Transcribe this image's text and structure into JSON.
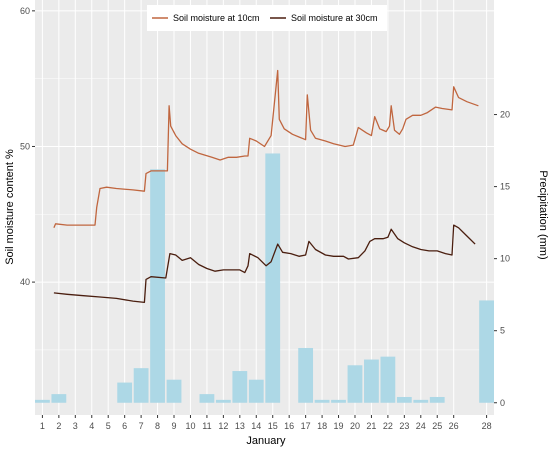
{
  "chart_data": {
    "type": "line",
    "xlabel": "January",
    "x_ticks": [
      1,
      2,
      3,
      4,
      5,
      6,
      7,
      8,
      9,
      10,
      11,
      12,
      13,
      14,
      15,
      16,
      17,
      18,
      19,
      20,
      21,
      22,
      23,
      24,
      25,
      26,
      28
    ],
    "y_left": {
      "label": "Soil moisture content %",
      "ticks": [
        40,
        50,
        60
      ],
      "range": [
        30.2,
        60.8
      ]
    },
    "y_right": {
      "label": "Precipitation (mm)",
      "ticks": [
        0,
        5,
        10,
        15,
        20
      ],
      "range": [
        -0.85,
        27.95
      ]
    },
    "legend": {
      "position": "top",
      "entries": [
        "Soil moisture at 10cm",
        "Soil moisture at 30cm"
      ]
    },
    "grid": true,
    "colors": {
      "sm10": "#c0663f",
      "sm30": "#4a1e0f",
      "precip": "#add8e6",
      "panel": "#ebebeb",
      "grid": "#ffffff"
    },
    "series": [
      {
        "name": "Soil moisture at 10cm",
        "axis": "left",
        "points": [
          [
            1.7,
            44.0
          ],
          [
            1.8,
            44.3
          ],
          [
            2.5,
            44.2
          ],
          [
            3.5,
            44.2
          ],
          [
            4.2,
            44.2
          ],
          [
            4.3,
            45.5
          ],
          [
            4.5,
            46.9
          ],
          [
            4.9,
            47.0
          ],
          [
            5.5,
            46.9
          ],
          [
            6.5,
            46.8
          ],
          [
            7.2,
            46.7
          ],
          [
            7.3,
            48.0
          ],
          [
            7.6,
            48.2
          ],
          [
            8.6,
            48.2
          ],
          [
            8.7,
            53.0
          ],
          [
            8.8,
            51.5
          ],
          [
            9.1,
            50.8
          ],
          [
            9.5,
            50.2
          ],
          [
            10.0,
            49.8
          ],
          [
            10.5,
            49.5
          ],
          [
            11.3,
            49.2
          ],
          [
            11.8,
            49.0
          ],
          [
            12.3,
            49.2
          ],
          [
            12.8,
            49.2
          ],
          [
            13.3,
            49.3
          ],
          [
            13.5,
            49.3
          ],
          [
            13.6,
            50.6
          ],
          [
            14.0,
            50.4
          ],
          [
            14.5,
            50.0
          ],
          [
            14.9,
            50.8
          ],
          [
            15.3,
            55.6
          ],
          [
            15.4,
            52.0
          ],
          [
            15.7,
            51.3
          ],
          [
            16.2,
            50.9
          ],
          [
            16.6,
            50.7
          ],
          [
            17.0,
            50.5
          ],
          [
            17.1,
            53.8
          ],
          [
            17.3,
            51.2
          ],
          [
            17.6,
            50.6
          ],
          [
            18.2,
            50.4
          ],
          [
            18.7,
            50.2
          ],
          [
            19.4,
            50.0
          ],
          [
            19.9,
            50.1
          ],
          [
            20.2,
            51.4
          ],
          [
            20.7,
            51.0
          ],
          [
            21.0,
            50.8
          ],
          [
            21.2,
            52.2
          ],
          [
            21.5,
            51.3
          ],
          [
            21.9,
            51.1
          ],
          [
            22.1,
            51.5
          ],
          [
            22.2,
            53.0
          ],
          [
            22.4,
            51.2
          ],
          [
            22.7,
            50.9
          ],
          [
            22.9,
            51.3
          ],
          [
            23.1,
            52.0
          ],
          [
            23.5,
            52.3
          ],
          [
            24.0,
            52.3
          ],
          [
            24.4,
            52.5
          ],
          [
            24.9,
            52.9
          ],
          [
            25.3,
            52.8
          ],
          [
            25.9,
            52.7
          ],
          [
            26.0,
            54.4
          ],
          [
            26.3,
            53.6
          ],
          [
            26.8,
            53.3
          ],
          [
            27.5,
            53.0
          ]
        ]
      },
      {
        "name": "Soil moisture at 30cm",
        "axis": "left",
        "points": [
          [
            1.7,
            39.2
          ],
          [
            2.5,
            39.1
          ],
          [
            3.5,
            39.0
          ],
          [
            4.5,
            38.9
          ],
          [
            5.5,
            38.8
          ],
          [
            6.5,
            38.6
          ],
          [
            7.2,
            38.5
          ],
          [
            7.3,
            40.2
          ],
          [
            7.6,
            40.4
          ],
          [
            8.5,
            40.3
          ],
          [
            8.6,
            41.0
          ],
          [
            8.75,
            42.1
          ],
          [
            9.1,
            42.0
          ],
          [
            9.5,
            41.6
          ],
          [
            10.0,
            41.8
          ],
          [
            10.5,
            41.3
          ],
          [
            11.0,
            41.0
          ],
          [
            11.5,
            40.8
          ],
          [
            12.0,
            40.9
          ],
          [
            12.5,
            40.9
          ],
          [
            13.0,
            40.9
          ],
          [
            13.3,
            40.7
          ],
          [
            13.5,
            41.2
          ],
          [
            13.6,
            42.1
          ],
          [
            14.1,
            41.8
          ],
          [
            14.6,
            41.2
          ],
          [
            14.9,
            41.5
          ],
          [
            15.3,
            42.8
          ],
          [
            15.6,
            42.2
          ],
          [
            16.1,
            42.1
          ],
          [
            16.6,
            41.9
          ],
          [
            17.0,
            42.0
          ],
          [
            17.2,
            43.0
          ],
          [
            17.6,
            42.4
          ],
          [
            18.2,
            42.0
          ],
          [
            18.7,
            41.9
          ],
          [
            19.3,
            41.9
          ],
          [
            19.6,
            41.7
          ],
          [
            20.2,
            41.8
          ],
          [
            20.6,
            42.3
          ],
          [
            20.9,
            43.0
          ],
          [
            21.2,
            43.2
          ],
          [
            21.7,
            43.2
          ],
          [
            22.0,
            43.3
          ],
          [
            22.2,
            43.9
          ],
          [
            22.6,
            43.2
          ],
          [
            23.0,
            42.9
          ],
          [
            23.5,
            42.6
          ],
          [
            24.0,
            42.4
          ],
          [
            24.5,
            42.3
          ],
          [
            25.0,
            42.3
          ],
          [
            25.5,
            42.1
          ],
          [
            25.9,
            42.0
          ],
          [
            26.0,
            44.2
          ],
          [
            26.3,
            44.0
          ],
          [
            26.8,
            43.4
          ],
          [
            27.3,
            42.8
          ]
        ]
      },
      {
        "name": "Precipitation (mm)",
        "type": "bar",
        "axis": "right",
        "x": [
          1,
          2,
          3,
          4,
          5,
          6,
          7,
          8,
          9,
          10,
          11,
          12,
          13,
          14,
          15,
          16,
          17,
          18,
          19,
          20,
          21,
          22,
          23,
          24,
          25,
          26,
          28
        ],
        "values": [
          0.2,
          0.6,
          0,
          0,
          0,
          1.4,
          2.4,
          16.2,
          1.6,
          0,
          0.6,
          0.2,
          2.2,
          1.6,
          17.3,
          0,
          3.8,
          0.2,
          0.2,
          2.6,
          3.0,
          3.2,
          0.4,
          0.2,
          0.4,
          0,
          7.1
        ]
      }
    ]
  }
}
